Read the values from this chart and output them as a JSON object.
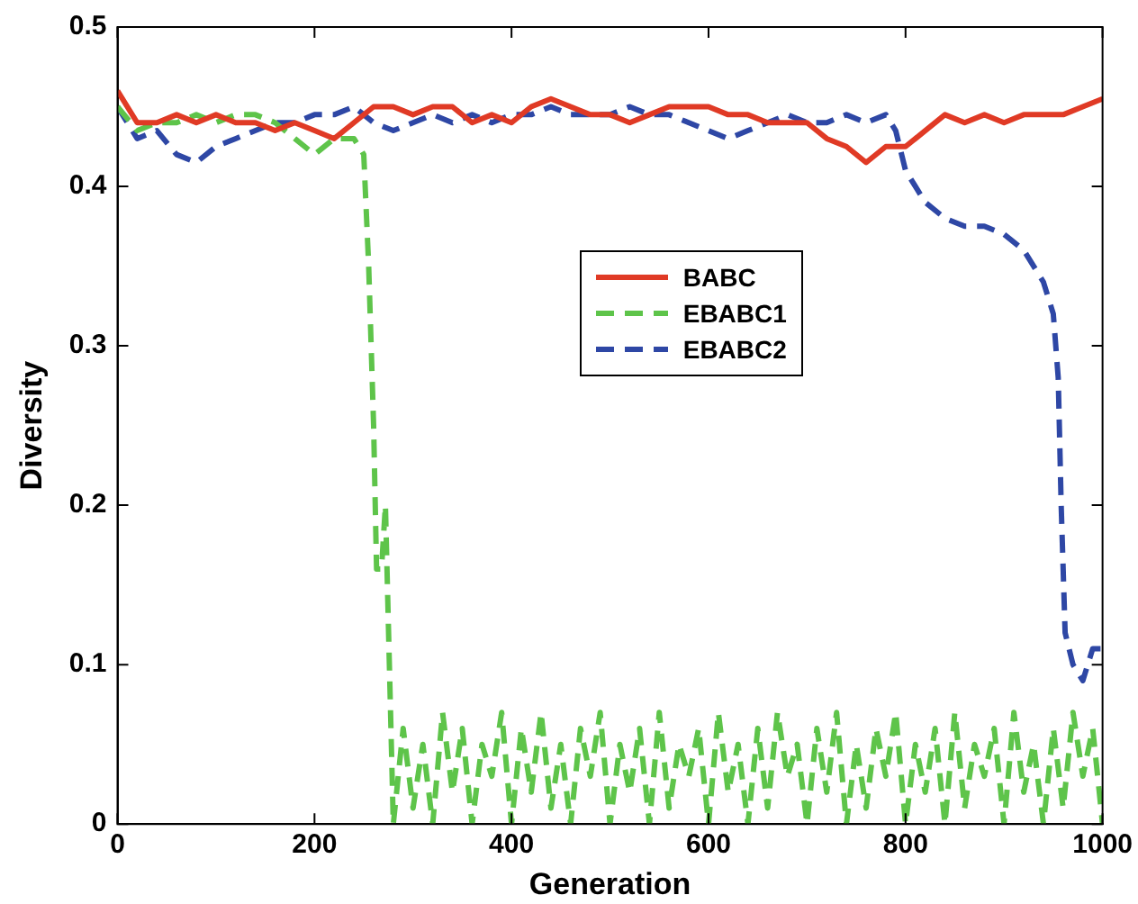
{
  "chart_data": {
    "type": "line",
    "xlabel": "Generation",
    "ylabel": "Diversity",
    "xlim": [
      0,
      1000
    ],
    "xticks": [
      0,
      200,
      400,
      600,
      800,
      1000
    ],
    "ylim": [
      0,
      0.5
    ],
    "yticks": [
      0,
      0.1,
      0.2,
      0.3,
      0.4,
      0.5
    ],
    "grid": false,
    "legend": "right",
    "marker": "none",
    "series": [
      {
        "name": "BABC",
        "color": "#e03a25",
        "line_style": "solid",
        "x": [
          0,
          20,
          40,
          60,
          80,
          100,
          120,
          140,
          160,
          180,
          200,
          220,
          240,
          260,
          280,
          300,
          320,
          340,
          360,
          380,
          400,
          420,
          440,
          460,
          480,
          500,
          520,
          540,
          560,
          580,
          600,
          620,
          640,
          660,
          680,
          700,
          720,
          740,
          760,
          780,
          800,
          820,
          840,
          860,
          880,
          900,
          920,
          940,
          960,
          980,
          1000
        ],
        "values": [
          0.46,
          0.44,
          0.44,
          0.445,
          0.44,
          0.445,
          0.44,
          0.44,
          0.435,
          0.44,
          0.435,
          0.43,
          0.44,
          0.45,
          0.45,
          0.445,
          0.45,
          0.45,
          0.44,
          0.445,
          0.44,
          0.45,
          0.455,
          0.45,
          0.445,
          0.445,
          0.44,
          0.445,
          0.45,
          0.45,
          0.45,
          0.445,
          0.445,
          0.44,
          0.44,
          0.44,
          0.43,
          0.425,
          0.415,
          0.425,
          0.425,
          0.435,
          0.445,
          0.44,
          0.445,
          0.44,
          0.445,
          0.445,
          0.445,
          0.45,
          0.455
        ]
      },
      {
        "name": "EBABC1",
        "color": "#5ec44a",
        "line_style": "dashed",
        "x": [
          0,
          20,
          40,
          60,
          80,
          100,
          120,
          140,
          160,
          180,
          200,
          220,
          240,
          250,
          255,
          260,
          263,
          268,
          272,
          276,
          280,
          290,
          300,
          310,
          320,
          330,
          340,
          350,
          360,
          370,
          380,
          390,
          400,
          410,
          420,
          430,
          440,
          450,
          460,
          470,
          480,
          490,
          500,
          510,
          520,
          530,
          540,
          550,
          560,
          570,
          580,
          590,
          600,
          610,
          620,
          630,
          640,
          650,
          660,
          670,
          680,
          690,
          700,
          710,
          720,
          730,
          740,
          750,
          760,
          770,
          780,
          790,
          800,
          810,
          820,
          830,
          840,
          850,
          860,
          870,
          880,
          890,
          900,
          910,
          920,
          930,
          940,
          950,
          960,
          970,
          980,
          990,
          1000
        ],
        "values": [
          0.45,
          0.435,
          0.44,
          0.44,
          0.445,
          0.44,
          0.445,
          0.445,
          0.44,
          0.43,
          0.42,
          0.43,
          0.43,
          0.42,
          0.35,
          0.25,
          0.16,
          0.16,
          0.2,
          0.1,
          0.0,
          0.06,
          0.01,
          0.05,
          0.0,
          0.07,
          0.02,
          0.06,
          0.0,
          0.05,
          0.03,
          0.07,
          0.0,
          0.06,
          0.02,
          0.07,
          0.01,
          0.05,
          0.0,
          0.06,
          0.03,
          0.07,
          0.0,
          0.05,
          0.02,
          0.06,
          0.0,
          0.07,
          0.01,
          0.05,
          0.03,
          0.06,
          0.0,
          0.07,
          0.02,
          0.05,
          0.0,
          0.06,
          0.01,
          0.07,
          0.03,
          0.05,
          0.0,
          0.06,
          0.02,
          0.07,
          0.0,
          0.05,
          0.01,
          0.06,
          0.03,
          0.07,
          0.0,
          0.05,
          0.02,
          0.06,
          0.0,
          0.07,
          0.01,
          0.05,
          0.03,
          0.06,
          0.0,
          0.07,
          0.02,
          0.05,
          0.0,
          0.06,
          0.01,
          0.07,
          0.03,
          0.06,
          0.0
        ]
      },
      {
        "name": "EBABC2",
        "color": "#2e47a5",
        "line_style": "dashed",
        "x": [
          0,
          20,
          40,
          60,
          80,
          100,
          120,
          140,
          160,
          180,
          200,
          220,
          240,
          260,
          280,
          300,
          320,
          340,
          360,
          380,
          400,
          420,
          440,
          460,
          480,
          500,
          520,
          540,
          560,
          580,
          600,
          620,
          640,
          660,
          680,
          700,
          720,
          740,
          760,
          780,
          790,
          800,
          820,
          840,
          860,
          880,
          900,
          920,
          940,
          950,
          955,
          958,
          962,
          970,
          980,
          990,
          1000
        ],
        "values": [
          0.45,
          0.43,
          0.435,
          0.42,
          0.415,
          0.425,
          0.43,
          0.435,
          0.44,
          0.44,
          0.445,
          0.445,
          0.45,
          0.44,
          0.435,
          0.44,
          0.445,
          0.44,
          0.445,
          0.44,
          0.445,
          0.445,
          0.45,
          0.445,
          0.445,
          0.445,
          0.45,
          0.445,
          0.445,
          0.44,
          0.435,
          0.43,
          0.435,
          0.44,
          0.445,
          0.44,
          0.44,
          0.445,
          0.44,
          0.445,
          0.435,
          0.41,
          0.39,
          0.38,
          0.375,
          0.375,
          0.37,
          0.36,
          0.34,
          0.32,
          0.28,
          0.2,
          0.12,
          0.1,
          0.09,
          0.11,
          0.11
        ]
      }
    ]
  }
}
